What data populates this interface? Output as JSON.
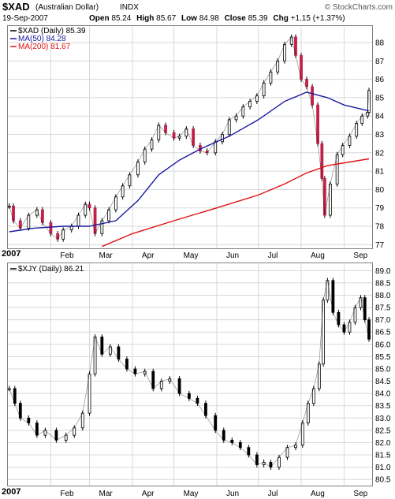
{
  "header": {
    "symbol": "$XAD",
    "name": "(Australian Dollar)",
    "exchange": "INDX",
    "credit": "© StockCharts.com",
    "date": "19-Sep-2007",
    "open_label": "Open",
    "open": "85.24",
    "high_label": "High",
    "high": "85.67",
    "low_label": "Low",
    "low": "84.98",
    "close_label": "Close",
    "close": "85.39",
    "chg_label": "Chg",
    "chg": "+1.15 (+1.37%)"
  },
  "legend_top": [
    {
      "label": "$XAD (Daily) 85.39",
      "color": "#000000"
    },
    {
      "label": "MA(50) 84.28",
      "color": "#1a1aa0"
    },
    {
      "label": "MA(200) 81.67",
      "color": "#e01010"
    }
  ],
  "legend_bottom": [
    {
      "label": "$XJY (Daily) 86.21",
      "color": "#000000"
    }
  ],
  "x_axis": {
    "year_label": "2007",
    "months": [
      "Feb",
      "Mar",
      "Apr",
      "May",
      "Jun",
      "Jul",
      "Aug",
      "Sep"
    ]
  },
  "chart_data": [
    {
      "type": "candlestick",
      "title": "$XAD (Australian Dollar) INDX",
      "x_range": [
        "2007-01-01",
        "2007-09-19"
      ],
      "ylim": [
        76.8,
        88.9
      ],
      "y_ticks": [
        "77",
        "78",
        "79",
        "80",
        "81",
        "82",
        "83",
        "84",
        "85",
        "86",
        "87",
        "88"
      ],
      "grid": true,
      "legend_position": "top-left",
      "series": [
        {
          "name": "$XAD (Daily) 85.39",
          "type": "close",
          "points": [
            [
              "2007-01-02",
              79.1
            ],
            [
              "2007-01-05",
              78.3
            ],
            [
              "2007-01-10",
              77.9
            ],
            [
              "2007-01-16",
              78.6
            ],
            [
              "2007-01-22",
              78.9
            ],
            [
              "2007-01-26",
              78.2
            ],
            [
              "2007-02-01",
              77.6
            ],
            [
              "2007-02-06",
              77.3
            ],
            [
              "2007-02-10",
              77.8
            ],
            [
              "2007-02-16",
              78.0
            ],
            [
              "2007-02-21",
              78.6
            ],
            [
              "2007-02-26",
              79.2
            ],
            [
              "2007-03-01",
              79.0
            ],
            [
              "2007-03-05",
              77.6
            ],
            [
              "2007-03-10",
              78.3
            ],
            [
              "2007-03-15",
              78.9
            ],
            [
              "2007-03-20",
              79.6
            ],
            [
              "2007-03-25",
              80.2
            ],
            [
              "2007-03-30",
              80.8
            ],
            [
              "2007-04-05",
              81.5
            ],
            [
              "2007-04-10",
              82.2
            ],
            [
              "2007-04-15",
              82.7
            ],
            [
              "2007-04-20",
              83.5
            ],
            [
              "2007-04-25",
              83.1
            ],
            [
              "2007-05-01",
              82.8
            ],
            [
              "2007-05-05",
              82.9
            ],
            [
              "2007-05-10",
              83.3
            ],
            [
              "2007-05-15",
              82.4
            ],
            [
              "2007-05-20",
              82.1
            ],
            [
              "2007-05-25",
              82.0
            ],
            [
              "2007-05-31",
              82.6
            ],
            [
              "2007-06-05",
              83.0
            ],
            [
              "2007-06-10",
              83.8
            ],
            [
              "2007-06-15",
              84.0
            ],
            [
              "2007-06-20",
              84.5
            ],
            [
              "2007-06-25",
              84.8
            ],
            [
              "2007-06-30",
              85.1
            ],
            [
              "2007-07-05",
              85.8
            ],
            [
              "2007-07-10",
              86.4
            ],
            [
              "2007-07-15",
              87.0
            ],
            [
              "2007-07-20",
              87.9
            ],
            [
              "2007-07-25",
              88.3
            ],
            [
              "2007-07-28",
              87.3
            ],
            [
              "2007-08-01",
              86.0
            ],
            [
              "2007-08-05",
              85.6
            ],
            [
              "2007-08-09",
              84.6
            ],
            [
              "2007-08-13",
              82.5
            ],
            [
              "2007-08-16",
              80.6
            ],
            [
              "2007-08-18",
              78.6
            ],
            [
              "2007-08-22",
              80.3
            ],
            [
              "2007-08-27",
              81.9
            ],
            [
              "2007-08-31",
              82.4
            ],
            [
              "2007-09-05",
              82.9
            ],
            [
              "2007-09-10",
              83.6
            ],
            [
              "2007-09-14",
              84.0
            ],
            [
              "2007-09-18",
              84.2
            ],
            [
              "2007-09-19",
              85.39
            ]
          ]
        },
        {
          "name": "MA(50) 84.28",
          "type": "line",
          "points": [
            [
              "2007-01-02",
              77.7
            ],
            [
              "2007-01-20",
              77.9
            ],
            [
              "2007-02-10",
              78.0
            ],
            [
              "2007-03-01",
              78.0
            ],
            [
              "2007-03-20",
              78.3
            ],
            [
              "2007-04-05",
              79.4
            ],
            [
              "2007-04-20",
              80.8
            ],
            [
              "2007-05-05",
              81.6
            ],
            [
              "2007-05-20",
              82.2
            ],
            [
              "2007-06-10",
              82.9
            ],
            [
              "2007-07-01",
              83.8
            ],
            [
              "2007-07-20",
              84.8
            ],
            [
              "2007-08-05",
              85.3
            ],
            [
              "2007-08-20",
              85.0
            ],
            [
              "2007-09-01",
              84.6
            ],
            [
              "2007-09-19",
              84.28
            ]
          ]
        },
        {
          "name": "MA(200) 81.67",
          "type": "line",
          "points": [
            [
              "2007-03-10",
              76.9
            ],
            [
              "2007-04-01",
              77.6
            ],
            [
              "2007-05-01",
              78.3
            ],
            [
              "2007-06-01",
              79.0
            ],
            [
              "2007-07-01",
              79.7
            ],
            [
              "2007-07-20",
              80.3
            ],
            [
              "2007-08-05",
              80.9
            ],
            [
              "2007-08-20",
              81.3
            ],
            [
              "2007-09-05",
              81.5
            ],
            [
              "2007-09-19",
              81.67
            ]
          ]
        }
      ]
    },
    {
      "type": "candlestick",
      "title": "$XJY (Daily)",
      "x_range": [
        "2007-01-01",
        "2007-09-19"
      ],
      "ylim": [
        80.25,
        89.3
      ],
      "y_ticks": [
        "80.5",
        "81.0",
        "81.5",
        "82.0",
        "82.5",
        "83.0",
        "83.5",
        "84.0",
        "84.5",
        "85.0",
        "85.5",
        "86.0",
        "86.5",
        "87.0",
        "87.5",
        "88.0",
        "88.5",
        "89.0"
      ],
      "grid": true,
      "legend_position": "top-left",
      "series": [
        {
          "name": "$XJY (Daily) 86.21",
          "type": "close",
          "points": [
            [
              "2007-01-02",
              84.2
            ],
            [
              "2007-01-06",
              83.6
            ],
            [
              "2007-01-10",
              83.0
            ],
            [
              "2007-01-16",
              82.8
            ],
            [
              "2007-01-22",
              82.3
            ],
            [
              "2007-01-28",
              82.5
            ],
            [
              "2007-02-05",
              82.1
            ],
            [
              "2007-02-12",
              82.3
            ],
            [
              "2007-02-18",
              82.6
            ],
            [
              "2007-02-24",
              83.2
            ],
            [
              "2007-03-01",
              84.8
            ],
            [
              "2007-03-05",
              86.3
            ],
            [
              "2007-03-10",
              85.6
            ],
            [
              "2007-03-16",
              85.9
            ],
            [
              "2007-03-22",
              85.4
            ],
            [
              "2007-03-28",
              85.0
            ],
            [
              "2007-04-03",
              84.8
            ],
            [
              "2007-04-10",
              84.9
            ],
            [
              "2007-04-16",
              84.2
            ],
            [
              "2007-04-22",
              84.5
            ],
            [
              "2007-04-28",
              84.6
            ],
            [
              "2007-05-05",
              84.0
            ],
            [
              "2007-05-12",
              83.8
            ],
            [
              "2007-05-18",
              83.6
            ],
            [
              "2007-05-24",
              83.1
            ],
            [
              "2007-05-31",
              82.5
            ],
            [
              "2007-06-06",
              82.1
            ],
            [
              "2007-06-12",
              82.0
            ],
            [
              "2007-06-18",
              81.8
            ],
            [
              "2007-06-24",
              81.5
            ],
            [
              "2007-06-30",
              81.1
            ],
            [
              "2007-07-05",
              81.2
            ],
            [
              "2007-07-10",
              81.0
            ],
            [
              "2007-07-16",
              81.4
            ],
            [
              "2007-07-22",
              81.8
            ],
            [
              "2007-07-28",
              81.9
            ],
            [
              "2007-08-02",
              82.8
            ],
            [
              "2007-08-06",
              83.6
            ],
            [
              "2007-08-10",
              84.2
            ],
            [
              "2007-08-14",
              85.2
            ],
            [
              "2007-08-17",
              87.8
            ],
            [
              "2007-08-20",
              88.6
            ],
            [
              "2007-08-24",
              87.3
            ],
            [
              "2007-08-28",
              86.8
            ],
            [
              "2007-09-01",
              86.5
            ],
            [
              "2007-09-05",
              86.9
            ],
            [
              "2007-09-09",
              87.5
            ],
            [
              "2007-09-13",
              87.9
            ],
            [
              "2007-09-16",
              87.0
            ],
            [
              "2007-09-19",
              86.21
            ]
          ]
        }
      ]
    }
  ]
}
